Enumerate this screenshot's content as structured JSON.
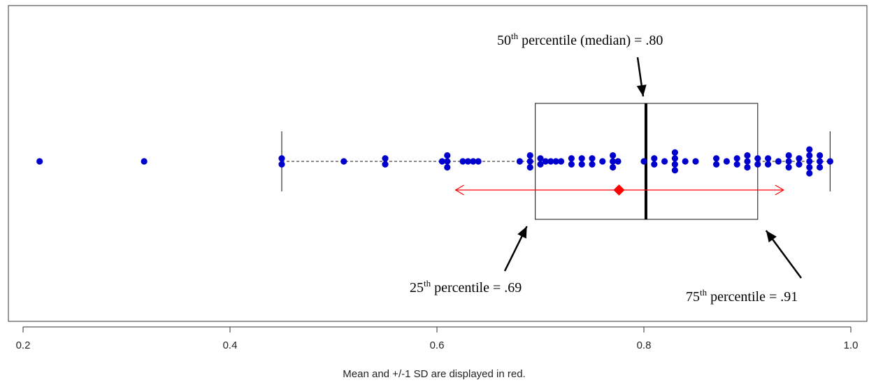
{
  "chart_data": {
    "type": "scatter",
    "subtype": "horizontal-boxplot-with-dotplot",
    "title": "",
    "xlabel": "",
    "ylabel": "",
    "caption": "Mean and +/-1 SD are displayed in red.",
    "xlim": [
      0.19,
      1.01
    ],
    "x_ticks": [
      0.2,
      0.4,
      0.6,
      0.8,
      1.0
    ],
    "x_tick_labels": [
      "0.2",
      "0.4",
      "0.6",
      "0.8",
      "1.0"
    ],
    "grid": false,
    "legend": "none",
    "boxplot": {
      "whisker_low": 0.45,
      "q1": 0.695,
      "median": 0.802,
      "q3": 0.91,
      "whisker_high": 0.98
    },
    "mean_sd": {
      "mean": 0.776,
      "low": 0.618,
      "high": 0.935,
      "color": "#ff0000"
    },
    "point_color": "#0000cc",
    "points": [
      0.216,
      0.317,
      0.45,
      0.45,
      0.51,
      0.55,
      0.55,
      0.605,
      0.61,
      0.61,
      0.61,
      0.625,
      0.63,
      0.635,
      0.64,
      0.68,
      0.69,
      0.69,
      0.69,
      0.7,
      0.7,
      0.705,
      0.71,
      0.715,
      0.72,
      0.73,
      0.73,
      0.74,
      0.74,
      0.75,
      0.75,
      0.76,
      0.77,
      0.77,
      0.77,
      0.775,
      0.8,
      0.81,
      0.81,
      0.82,
      0.83,
      0.83,
      0.83,
      0.83,
      0.84,
      0.85,
      0.87,
      0.87,
      0.88,
      0.89,
      0.89,
      0.9,
      0.9,
      0.9,
      0.91,
      0.91,
      0.92,
      0.92,
      0.93,
      0.94,
      0.94,
      0.94,
      0.95,
      0.95,
      0.96,
      0.96,
      0.96,
      0.96,
      0.96,
      0.97,
      0.97,
      0.97,
      0.98
    ],
    "annotations": [
      {
        "base": "50",
        "sup": "th",
        "text": " percentile (median) = .80",
        "target": 0.802
      },
      {
        "base": "25",
        "sup": "th",
        "text": " percentile = .69",
        "target": 0.695
      },
      {
        "base": "75",
        "sup": "th",
        "text": " percentile = .91",
        "target": 0.91
      }
    ]
  }
}
